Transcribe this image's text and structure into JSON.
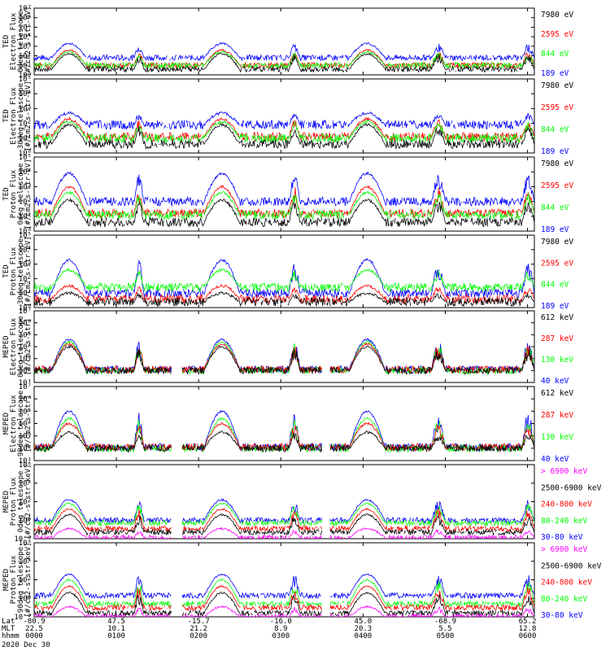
{
  "colors": {
    "blue": "#0000ff",
    "red": "#ff0000",
    "green": "#00ff00",
    "black": "#000000",
    "magenta": "#ff00ff"
  },
  "chart_data": {
    "type": "line",
    "title": "",
    "xlabel": "hhmm",
    "xlim": [
      0,
      365
    ],
    "x_ticks": [
      {
        "t": 0,
        "lat": "-80.9",
        "mlt": "22.5",
        "hhmm": "0000"
      },
      {
        "t": 60,
        "lat": "47.5",
        "mlt": "10.1",
        "hhmm": "0100"
      },
      {
        "t": 120,
        "lat": "-15.7",
        "mlt": "21.2",
        "hhmm": "0200"
      },
      {
        "t": 180,
        "lat": "-16.0",
        "mlt": "8.9",
        "hhmm": "0300"
      },
      {
        "t": 240,
        "lat": "45.0",
        "mlt": "20.3",
        "hhmm": "0400"
      },
      {
        "t": 300,
        "lat": "-68.9",
        "mlt": "5.5",
        "hhmm": "0500"
      },
      {
        "t": 360,
        "lat": "65.2",
        "mlt": "12.8",
        "hhmm": "0600"
      }
    ],
    "row_labels": [
      "Lat",
      "MLT",
      "hhmm"
    ],
    "date": "2020 Dec 30",
    "panels": [
      {
        "ylabel": [
          "TED",
          "Electron Flux",
          "0deg telescope",
          "[#/cm2-s-str-eV]"
        ],
        "ylog": [
          0,
          7
        ],
        "yticks": [
          "10⁰",
          "10¹",
          "10²",
          "10³",
          "10⁴",
          "10⁵",
          "10⁶",
          "10⁷"
        ],
        "legend": [
          {
            "text": "7980 eV",
            "color": "black"
          },
          {
            "text": "2595 eV",
            "color": "red"
          },
          {
            "text": "844 eV",
            "color": "green"
          },
          {
            "text": "189 eV",
            "color": "blue"
          }
        ],
        "series_levels": [
          {
            "color": "blue",
            "peak": 3.3,
            "base": 1.8
          },
          {
            "color": "red",
            "peak": 2.6,
            "base": 1.0
          },
          {
            "color": "green",
            "peak": 2.4,
            "base": 1.0
          },
          {
            "color": "black",
            "peak": 2.2,
            "base": 0.6
          }
        ]
      },
      {
        "ylabel": [
          "TED",
          "Electron Flux",
          "30deg telescope",
          "[#/cm2-s-str-eV]"
        ],
        "ylog": [
          0,
          5
        ],
        "yticks": [
          "10⁰",
          "10¹",
          "10²",
          "10³",
          "10⁴",
          "10⁵"
        ],
        "legend": [
          {
            "text": "7980 eV",
            "color": "black"
          },
          {
            "text": "2595 eV",
            "color": "red"
          },
          {
            "text": "844 eV",
            "color": "green"
          },
          {
            "text": "189 eV",
            "color": "blue"
          }
        ],
        "series_levels": [
          {
            "color": "blue",
            "peak": 2.7,
            "base": 1.9
          },
          {
            "color": "red",
            "peak": 2.3,
            "base": 1.1
          },
          {
            "color": "green",
            "peak": 2.1,
            "base": 1.0
          },
          {
            "color": "black",
            "peak": 1.9,
            "base": 0.6
          }
        ]
      },
      {
        "ylabel": [
          "TED",
          "Proton Flux",
          "0deg telescope",
          "[#/cm2-s-str-eV]"
        ],
        "ylog": [
          0,
          5
        ],
        "yticks": [
          "10⁰",
          "10¹",
          "10²",
          "10³",
          "10⁴",
          "10⁵"
        ],
        "legend": [
          {
            "text": "7980 eV",
            "color": "black"
          },
          {
            "text": "2595 eV",
            "color": "red"
          },
          {
            "text": "844 eV",
            "color": "green"
          },
          {
            "text": "189 eV",
            "color": "blue"
          }
        ],
        "series_levels": [
          {
            "color": "blue",
            "peak": 3.9,
            "base": 2.0
          },
          {
            "color": "red",
            "peak": 3.0,
            "base": 1.2
          },
          {
            "color": "green",
            "peak": 2.6,
            "base": 1.1
          },
          {
            "color": "black",
            "peak": 2.1,
            "base": 0.6
          }
        ]
      },
      {
        "ylabel": [
          "TED",
          "Proton Flux",
          "30deg telescope",
          "[#/cm2-s-str-eV]"
        ],
        "ylog": [
          0,
          5
        ],
        "yticks": [
          "10⁰",
          "10¹",
          "10²",
          "10³",
          "10⁴",
          "10⁵"
        ],
        "legend": [
          {
            "text": "7980 eV",
            "color": "black"
          },
          {
            "text": "2595 eV",
            "color": "red"
          },
          {
            "text": "844 eV",
            "color": "green"
          },
          {
            "text": "189 eV",
            "color": "blue"
          }
        ],
        "series_levels": [
          {
            "color": "blue",
            "peak": 3.3,
            "base": 1.0
          },
          {
            "color": "red",
            "peak": 1.5,
            "base": 0.6
          },
          {
            "color": "green",
            "peak": 2.6,
            "base": 1.4
          },
          {
            "color": "black",
            "peak": 1.0,
            "base": 0.4
          }
        ]
      },
      {
        "ylabel": [
          "MEPED",
          "Electron Flux",
          "0deg telescope",
          "[#/cm2-s-str]"
        ],
        "ylog": [
          1,
          7
        ],
        "yticks": [
          "10¹",
          "10²",
          "10³",
          "10⁴",
          "10⁵",
          "10⁶",
          "10⁷"
        ],
        "legend": [
          {
            "text": "612 keV",
            "color": "black"
          },
          {
            "text": "287 keV",
            "color": "red"
          },
          {
            "text": "130 keV",
            "color": "green"
          },
          {
            "text": "40 keV",
            "color": "blue"
          }
        ],
        "series_levels": [
          {
            "color": "blue",
            "peak": 4.6,
            "base": 2.1
          },
          {
            "color": "green",
            "peak": 4.4,
            "base": 2.0
          },
          {
            "color": "red",
            "peak": 4.2,
            "base": 2.1
          },
          {
            "color": "black",
            "peak": 4.0,
            "base": 2.0
          }
        ]
      },
      {
        "ylabel": [
          "MEPED",
          "Electron Flux",
          "90deg telescope",
          "[#/cm2-s-str]"
        ],
        "ylog": [
          1,
          7
        ],
        "yticks": [
          "10¹",
          "10²",
          "10³",
          "10⁴",
          "10⁵",
          "10⁶",
          "10⁷"
        ],
        "legend": [
          {
            "text": "612 keV",
            "color": "black"
          },
          {
            "text": "287 keV",
            "color": "red"
          },
          {
            "text": "130 keV",
            "color": "green"
          },
          {
            "text": "40 keV",
            "color": "blue"
          }
        ],
        "series_levels": [
          {
            "color": "blue",
            "peak": 5.0,
            "base": 2.1
          },
          {
            "color": "green",
            "peak": 4.4,
            "base": 2.0
          },
          {
            "color": "red",
            "peak": 4.0,
            "base": 2.1
          },
          {
            "color": "black",
            "peak": 3.3,
            "base": 2.0
          }
        ]
      },
      {
        "ylabel": [
          "MEPED",
          "Proton Flux",
          "0deg telescope",
          "[#/cm2-s-str-keV]"
        ],
        "ylog": [
          -2,
          6
        ],
        "yticks": [
          "10⁻²",
          "10⁰",
          "10²",
          "10⁴",
          "10⁶"
        ],
        "legend": [
          {
            "text": "> 6900 keV",
            "color": "magenta"
          },
          {
            "text": "2500-6900 keV",
            "color": "black"
          },
          {
            "text": "240-800 keV",
            "color": "red"
          },
          {
            "text": "80-240 keV",
            "color": "green"
          },
          {
            "text": "30-80 keV",
            "color": "blue"
          }
        ],
        "series_levels": [
          {
            "color": "blue",
            "peak": 2.2,
            "base": 0.0
          },
          {
            "color": "green",
            "peak": 1.8,
            "base": -0.3
          },
          {
            "color": "red",
            "peak": 1.2,
            "base": -0.9
          },
          {
            "color": "black",
            "peak": 0.6,
            "base": -1.3
          },
          {
            "color": "magenta",
            "peak": -0.9,
            "base": -1.9
          }
        ]
      },
      {
        "ylabel": [
          "MEPED",
          "Proton Flux",
          "90deg telescope",
          "[#/cm2-s-str-keV]"
        ],
        "ylog": [
          -2,
          6
        ],
        "yticks": [
          "10⁻²",
          "10⁰",
          "10²",
          "10⁴",
          "10⁶"
        ],
        "legend": [
          {
            "text": "> 6900 keV",
            "color": "magenta"
          },
          {
            "text": "2500-6900 keV",
            "color": "black"
          },
          {
            "text": "240-800 keV",
            "color": "red"
          },
          {
            "text": "80-240 keV",
            "color": "green"
          },
          {
            "text": "30-80 keV",
            "color": "blue"
          }
        ],
        "series_levels": [
          {
            "color": "blue",
            "peak": 2.6,
            "base": 0.3
          },
          {
            "color": "green",
            "peak": 2.0,
            "base": -0.6
          },
          {
            "color": "red",
            "peak": 1.3,
            "base": -1.0
          },
          {
            "color": "black",
            "peak": 0.6,
            "base": -1.6
          },
          {
            "color": "magenta",
            "peak": -0.9,
            "base": -2.0
          }
        ]
      }
    ],
    "passes": [
      {
        "t0": 13,
        "t1": 38,
        "kind": "hump"
      },
      {
        "t0": 124,
        "t1": 150,
        "kind": "hump"
      },
      {
        "t0": 230,
        "t1": 256,
        "kind": "hump"
      },
      {
        "t0": 73,
        "t1": 80,
        "kind": "burst"
      },
      {
        "t0": 186,
        "t1": 194,
        "kind": "burst"
      },
      {
        "t0": 290,
        "t1": 300,
        "kind": "burst"
      },
      {
        "t0": 356,
        "t1": 365,
        "kind": "burst"
      }
    ]
  }
}
